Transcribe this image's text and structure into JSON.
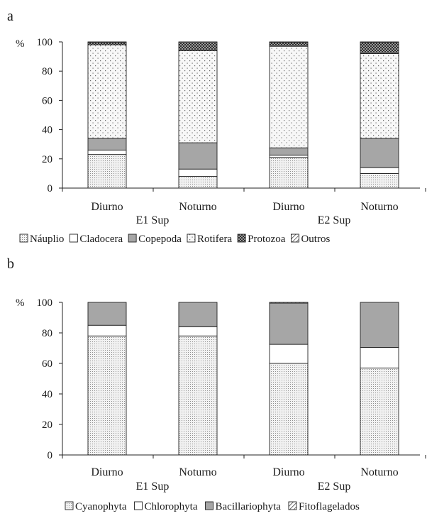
{
  "panels": [
    {
      "letter": "a",
      "chart_data": {
        "type": "bar",
        "stacked": true,
        "ylabel": "%",
        "ylim": [
          0,
          100
        ],
        "yticks": [
          0,
          20,
          40,
          60,
          80,
          100
        ],
        "categories": [
          "Diurno",
          "Noturno",
          "Diurno",
          "Noturno"
        ],
        "groups": [
          {
            "label": "E1 Sup",
            "categories": [
              0,
              1
            ]
          },
          {
            "label": "E2 Sup",
            "categories": [
              2,
              3
            ]
          }
        ],
        "series": [
          {
            "name": "Náuplio",
            "pattern": "fine-dots",
            "values": [
              23,
              8,
              21,
              10
            ]
          },
          {
            "name": "Cladocera",
            "pattern": "white",
            "values": [
              3,
              5,
              1.5,
              4
            ]
          },
          {
            "name": "Copepoda",
            "pattern": "gray",
            "values": [
              8,
              18,
              5,
              20
            ]
          },
          {
            "name": "Rotifera",
            "pattern": "spark-dots",
            "values": [
              64,
              63,
              69.5,
              58
            ]
          },
          {
            "name": "Protozoa",
            "pattern": "dark-check",
            "values": [
              1.5,
              6,
              2.5,
              7.5
            ]
          },
          {
            "name": "Outros",
            "pattern": "hatch",
            "values": [
              0.5,
              0,
              0.5,
              0.5
            ]
          }
        ],
        "legend_position": "bottom",
        "grid": false
      }
    },
    {
      "letter": "b",
      "chart_data": {
        "type": "bar",
        "stacked": true,
        "ylabel": "%",
        "ylim": [
          0,
          100
        ],
        "yticks": [
          0,
          20,
          40,
          60,
          80,
          100
        ],
        "categories": [
          "Diurno",
          "Noturno",
          "Diurno",
          "Noturno"
        ],
        "groups": [
          {
            "label": "E1 Sup",
            "categories": [
              0,
              1
            ]
          },
          {
            "label": "E2 Sup",
            "categories": [
              2,
              3
            ]
          }
        ],
        "series": [
          {
            "name": "Cyanophyta",
            "pattern": "fine-dots",
            "values": [
              78,
              78,
              60,
              57
            ]
          },
          {
            "name": "Chlorophyta",
            "pattern": "white",
            "values": [
              7,
              6,
              12.5,
              13.5
            ]
          },
          {
            "name": "Bacillariophyta",
            "pattern": "gray",
            "values": [
              15,
              16,
              27,
              29.5
            ]
          },
          {
            "name": "Fitoflagelados",
            "pattern": "hatch",
            "values": [
              0,
              0,
              0.5,
              0
            ]
          }
        ],
        "legend_position": "bottom",
        "grid": false
      }
    }
  ]
}
